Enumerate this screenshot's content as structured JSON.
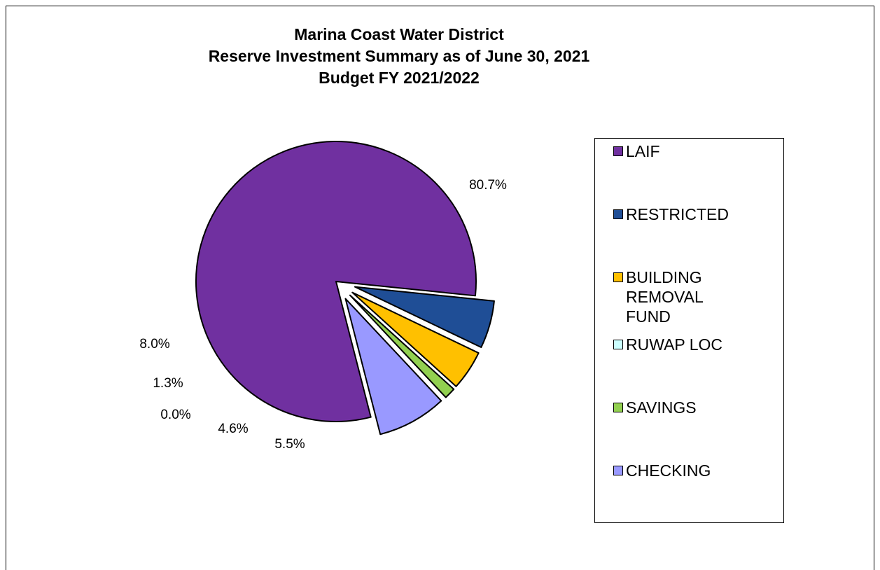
{
  "chart_data": {
    "type": "pie",
    "title": "Marina Coast Water District\nReserve Investment Summary as of June 30, 2021\nBudget FY 2021/2022",
    "title_lines": [
      "Marina Coast Water District",
      "Reserve Investment Summary as of June 30, 2021",
      "Budget FY 2021/2022"
    ],
    "legend_position": "right",
    "categories": [
      "LAIF",
      "RESTRICTED",
      "BUILDING REMOVAL FUND",
      "RUWAP LOC",
      "SAVINGS",
      "CHECKING"
    ],
    "legend_labels": [
      "LAIF",
      "RESTRICTED",
      "BUILDING\nREMOVAL\nFUND",
      "RUWAP LOC",
      "SAVINGS",
      "CHECKING"
    ],
    "values": [
      80.7,
      5.5,
      4.6,
      0.0,
      1.3,
      8.0
    ],
    "data_labels": [
      "80.7%",
      "5.5%",
      "4.6%",
      "0.0%",
      "1.3%",
      "8.0%"
    ],
    "colors": [
      "#7030A0",
      "#1F4E96",
      "#FFC000",
      "#CCFFFF",
      "#92D050",
      "#9999FF"
    ],
    "exploded": true
  }
}
